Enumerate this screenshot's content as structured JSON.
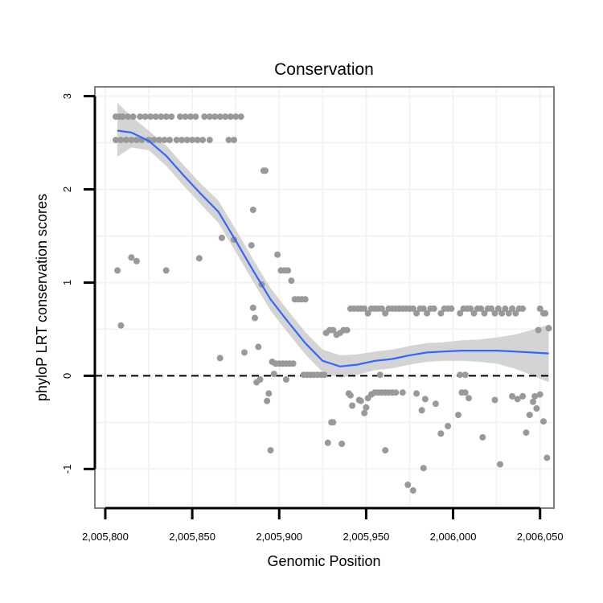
{
  "chart_data": {
    "type": "scatter",
    "title": "Conservation",
    "xlabel": "Genomic Position",
    "ylabel": "phyloP LRT conservation scores",
    "xlim": [
      2005794,
      2006058
    ],
    "ylim": [
      -1.42,
      3.1
    ],
    "x_ticks": [
      2005800,
      2005850,
      2005900,
      2005950,
      2006000,
      2006050
    ],
    "x_tick_labels": [
      "2,005,800",
      "2,005,850",
      "2,005,900",
      "2,005,950",
      "2,006,000",
      "2,006,050"
    ],
    "y_ticks": [
      -1,
      0,
      1,
      2,
      3
    ],
    "y_tick_labels": [
      "-1",
      "0",
      "1",
      "2",
      "3"
    ],
    "reference_line": {
      "y": 0,
      "style": "dashed",
      "color": "#000000"
    },
    "colors": {
      "points": "#999999",
      "smooth_line": "#3366ff",
      "confidence_band": "#cccccc",
      "panel_border": "#7f7f7f",
      "grid": "#f3f3f3"
    },
    "grid": true,
    "points": [
      [
        2005806,
        2.78
      ],
      [
        2005808,
        2.78
      ],
      [
        2005810,
        2.78
      ],
      [
        2005813,
        2.78
      ],
      [
        2005816,
        2.78
      ],
      [
        2005820,
        2.78
      ],
      [
        2005823,
        2.78
      ],
      [
        2005826,
        2.78
      ],
      [
        2005829,
        2.78
      ],
      [
        2005832,
        2.78
      ],
      [
        2005835,
        2.78
      ],
      [
        2005838,
        2.78
      ],
      [
        2005843,
        2.78
      ],
      [
        2005846,
        2.78
      ],
      [
        2005849,
        2.78
      ],
      [
        2005852,
        2.78
      ],
      [
        2005857,
        2.78
      ],
      [
        2005860,
        2.78
      ],
      [
        2005863,
        2.78
      ],
      [
        2005866,
        2.78
      ],
      [
        2005869,
        2.78
      ],
      [
        2005872,
        2.78
      ],
      [
        2005875,
        2.78
      ],
      [
        2005878,
        2.78
      ],
      [
        2005806,
        2.53
      ],
      [
        2005809,
        2.53
      ],
      [
        2005812,
        2.53
      ],
      [
        2005815,
        2.53
      ],
      [
        2005818,
        2.53
      ],
      [
        2005821,
        2.53
      ],
      [
        2005825,
        2.53
      ],
      [
        2005828,
        2.53
      ],
      [
        2005831,
        2.53
      ],
      [
        2005834,
        2.53
      ],
      [
        2005837,
        2.53
      ],
      [
        2005841,
        2.53
      ],
      [
        2005844,
        2.53
      ],
      [
        2005847,
        2.53
      ],
      [
        2005850,
        2.53
      ],
      [
        2005853,
        2.53
      ],
      [
        2005856,
        2.53
      ],
      [
        2005860,
        2.53
      ],
      [
        2005871,
        2.53
      ],
      [
        2005874,
        2.53
      ],
      [
        2005807,
        1.13
      ],
      [
        2005809,
        0.54
      ],
      [
        2005815,
        1.27
      ],
      [
        2005818,
        1.23
      ],
      [
        2005835,
        1.13
      ],
      [
        2005854,
        1.26
      ],
      [
        2005866,
        0.19
      ],
      [
        2005867,
        1.48
      ],
      [
        2005874,
        1.46
      ],
      [
        2005880,
        0.25
      ],
      [
        2005884,
        1.4
      ],
      [
        2005885,
        1.78
      ],
      [
        2005885,
        0.73
      ],
      [
        2005886,
        0.62
      ],
      [
        2005887,
        -0.07
      ],
      [
        2005888,
        0.31
      ],
      [
        2005889,
        -0.04
      ],
      [
        2005890,
        0.98
      ],
      [
        2005891,
        2.2
      ],
      [
        2005892,
        2.2
      ],
      [
        2005893,
        -0.27
      ],
      [
        2005894,
        -0.19
      ],
      [
        2005895,
        -0.8
      ],
      [
        2005896,
        0.15
      ],
      [
        2005897,
        0.02
      ],
      [
        2005898,
        0.13
      ],
      [
        2005899,
        1.3
      ],
      [
        2005900,
        0.13
      ],
      [
        2005901,
        1.13
      ],
      [
        2005902,
        0.13
      ],
      [
        2005903,
        1.13
      ],
      [
        2005904,
        0.13
      ],
      [
        2005904,
        -0.04
      ],
      [
        2005905,
        1.13
      ],
      [
        2005906,
        0.13
      ],
      [
        2005907,
        1.02
      ],
      [
        2005908,
        0.13
      ],
      [
        2005909,
        0.82
      ],
      [
        2005911,
        0.82
      ],
      [
        2005913,
        0.82
      ],
      [
        2005915,
        0.82
      ],
      [
        2005914,
        0.01
      ],
      [
        2005916,
        0.01
      ],
      [
        2005918,
        0.01
      ],
      [
        2005920,
        0.01
      ],
      [
        2005922,
        0.01
      ],
      [
        2005924,
        0.01
      ],
      [
        2005926,
        0.01
      ],
      [
        2005927,
        0.46
      ],
      [
        2005929,
        0.49
      ],
      [
        2005931,
        0.49
      ],
      [
        2005933,
        0.44
      ],
      [
        2005935,
        0.46
      ],
      [
        2005937,
        0.49
      ],
      [
        2005939,
        0.49
      ],
      [
        2005928,
        -0.72
      ],
      [
        2005930,
        -0.5
      ],
      [
        2005931,
        -0.5
      ],
      [
        2005936,
        -0.73
      ],
      [
        2005940,
        -0.19
      ],
      [
        2005941,
        -0.21
      ],
      [
        2005942,
        -0.32
      ],
      [
        2005946,
        -0.26
      ],
      [
        2005947,
        -0.27
      ],
      [
        2005949,
        -0.4
      ],
      [
        2005950,
        -0.34
      ],
      [
        2005951,
        -0.24
      ],
      [
        2005953,
        -0.2
      ],
      [
        2005958,
        0.01
      ],
      [
        2005961,
        -0.8
      ],
      [
        2005971,
        -0.18
      ],
      [
        2005974,
        -1.17
      ],
      [
        2005977,
        -1.23
      ],
      [
        2005979,
        -0.19
      ],
      [
        2005982,
        -0.37
      ],
      [
        2005983,
        -0.99
      ],
      [
        2005984,
        -0.25
      ],
      [
        2005990,
        -0.3
      ],
      [
        2005993,
        -0.62
      ],
      [
        2005997,
        -0.54
      ],
      [
        2006003,
        -0.42
      ],
      [
        2006005,
        -0.18
      ],
      [
        2006007,
        -0.18
      ],
      [
        2006009,
        -0.24
      ],
      [
        2006017,
        -0.66
      ],
      [
        2006024,
        -0.26
      ],
      [
        2006027,
        -0.95
      ],
      [
        2006034,
        -0.22
      ],
      [
        2006037,
        -0.25
      ],
      [
        2006040,
        -0.22
      ],
      [
        2006042,
        -0.61
      ],
      [
        2006044,
        -0.42
      ],
      [
        2006046,
        -0.28
      ],
      [
        2006047,
        -0.22
      ],
      [
        2006048,
        -0.35
      ],
      [
        2006050,
        -0.2
      ],
      [
        2006052,
        -0.49
      ],
      [
        2006054,
        -0.88
      ],
      [
        2006055,
        0.51
      ],
      [
        2005955,
        -0.18
      ],
      [
        2005957,
        -0.18
      ],
      [
        2005959,
        -0.18
      ],
      [
        2005961,
        -0.18
      ],
      [
        2005963,
        -0.18
      ],
      [
        2005965,
        -0.18
      ],
      [
        2005967,
        -0.18
      ],
      [
        2006004,
        0.01
      ],
      [
        2006007,
        0.01
      ],
      [
        2005941,
        0.72
      ],
      [
        2005943,
        0.72
      ],
      [
        2005945,
        0.72
      ],
      [
        2005947,
        0.72
      ],
      [
        2005949,
        0.72
      ],
      [
        2005951,
        0.67
      ],
      [
        2005953,
        0.72
      ],
      [
        2005955,
        0.72
      ],
      [
        2005957,
        0.72
      ],
      [
        2005959,
        0.72
      ],
      [
        2005961,
        0.67
      ],
      [
        2005963,
        0.72
      ],
      [
        2005965,
        0.72
      ],
      [
        2005967,
        0.72
      ],
      [
        2005969,
        0.72
      ],
      [
        2005971,
        0.72
      ],
      [
        2005973,
        0.72
      ],
      [
        2005975,
        0.72
      ],
      [
        2005977,
        0.72
      ],
      [
        2005979,
        0.67
      ],
      [
        2005981,
        0.72
      ],
      [
        2005983,
        0.72
      ],
      [
        2005985,
        0.67
      ],
      [
        2005987,
        0.72
      ],
      [
        2005989,
        0.72
      ],
      [
        2005993,
        0.67
      ],
      [
        2005995,
        0.72
      ],
      [
        2005997,
        0.72
      ],
      [
        2005999,
        0.72
      ],
      [
        2006004,
        0.67
      ],
      [
        2006006,
        0.72
      ],
      [
        2006008,
        0.72
      ],
      [
        2006010,
        0.72
      ],
      [
        2006012,
        0.67
      ],
      [
        2006014,
        0.72
      ],
      [
        2006016,
        0.72
      ],
      [
        2006018,
        0.67
      ],
      [
        2006020,
        0.72
      ],
      [
        2006022,
        0.72
      ],
      [
        2006024,
        0.67
      ],
      [
        2006026,
        0.72
      ],
      [
        2006028,
        0.67
      ],
      [
        2006030,
        0.72
      ],
      [
        2006032,
        0.67
      ],
      [
        2006034,
        0.72
      ],
      [
        2006036,
        0.67
      ],
      [
        2006038,
        0.72
      ],
      [
        2006040,
        0.72
      ],
      [
        2006050,
        0.72
      ],
      [
        2006052,
        0.67
      ],
      [
        2006053,
        0.67
      ],
      [
        2006049,
        0.49
      ]
    ],
    "smooth": [
      {
        "x": 2005807,
        "y": 2.63,
        "lo": 2.35,
        "hi": 2.93
      },
      {
        "x": 2005815,
        "y": 2.61,
        "lo": 2.45,
        "hi": 2.78
      },
      {
        "x": 2005825,
        "y": 2.52,
        "lo": 2.42,
        "hi": 2.63
      },
      {
        "x": 2005835,
        "y": 2.36,
        "lo": 2.25,
        "hi": 2.47
      },
      {
        "x": 2005845,
        "y": 2.15,
        "lo": 2.04,
        "hi": 2.26
      },
      {
        "x": 2005855,
        "y": 1.95,
        "lo": 1.84,
        "hi": 2.06
      },
      {
        "x": 2005865,
        "y": 1.76,
        "lo": 1.64,
        "hi": 1.88
      },
      {
        "x": 2005875,
        "y": 1.45,
        "lo": 1.33,
        "hi": 1.57
      },
      {
        "x": 2005885,
        "y": 1.13,
        "lo": 1.01,
        "hi": 1.25
      },
      {
        "x": 2005895,
        "y": 0.82,
        "lo": 0.7,
        "hi": 0.94
      },
      {
        "x": 2005905,
        "y": 0.58,
        "lo": 0.46,
        "hi": 0.7
      },
      {
        "x": 2005915,
        "y": 0.35,
        "lo": 0.23,
        "hi": 0.47
      },
      {
        "x": 2005925,
        "y": 0.16,
        "lo": 0.04,
        "hi": 0.28
      },
      {
        "x": 2005935,
        "y": 0.1,
        "lo": -0.02,
        "hi": 0.22
      },
      {
        "x": 2005945,
        "y": 0.12,
        "lo": 0.01,
        "hi": 0.23
      },
      {
        "x": 2005955,
        "y": 0.16,
        "lo": 0.06,
        "hi": 0.26
      },
      {
        "x": 2005965,
        "y": 0.18,
        "lo": 0.08,
        "hi": 0.28
      },
      {
        "x": 2005975,
        "y": 0.22,
        "lo": 0.12,
        "hi": 0.32
      },
      {
        "x": 2005985,
        "y": 0.25,
        "lo": 0.15,
        "hi": 0.35
      },
      {
        "x": 2005995,
        "y": 0.26,
        "lo": 0.16,
        "hi": 0.36
      },
      {
        "x": 2006005,
        "y": 0.27,
        "lo": 0.16,
        "hi": 0.38
      },
      {
        "x": 2006015,
        "y": 0.27,
        "lo": 0.15,
        "hi": 0.39
      },
      {
        "x": 2006025,
        "y": 0.27,
        "lo": 0.13,
        "hi": 0.41
      },
      {
        "x": 2006035,
        "y": 0.26,
        "lo": 0.08,
        "hi": 0.44
      },
      {
        "x": 2006045,
        "y": 0.25,
        "lo": 0.01,
        "hi": 0.49
      },
      {
        "x": 2006055,
        "y": 0.24,
        "lo": -0.07,
        "hi": 0.55
      }
    ]
  }
}
